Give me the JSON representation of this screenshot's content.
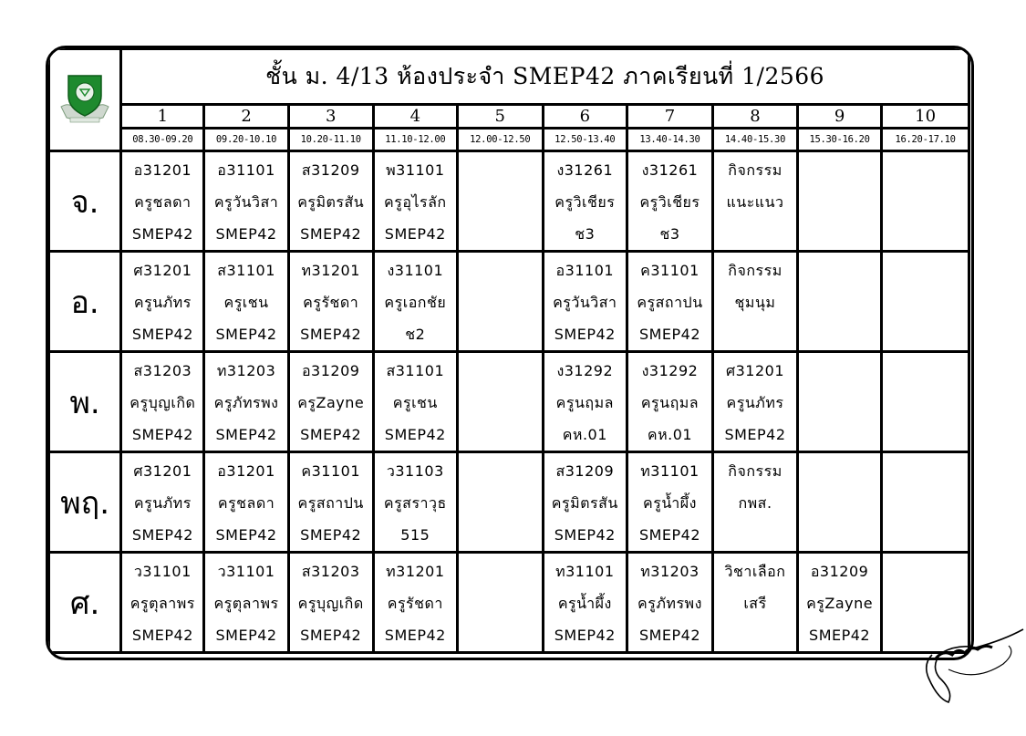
{
  "title": "ชั้น ม. 4/13 ห้องประจำ SMEP42 ภาคเรียนที่ 1/2566",
  "periods": [
    "1",
    "2",
    "3",
    "4",
    "5",
    "6",
    "7",
    "8",
    "9",
    "10"
  ],
  "times": [
    "08.30-09.20",
    "09.20-10.10",
    "10.20-11.10",
    "11.10-12.00",
    "12.00-12.50",
    "12.50-13.40",
    "13.40-14.30",
    "14.40-15.30",
    "15.30-16.20",
    "16.20-17.10"
  ],
  "logo": {
    "icon": "school-crest-icon",
    "color": "#1e8a2e"
  },
  "signature": {
    "icon": "handwritten-signature"
  },
  "schedule": [
    {
      "day": "จ.",
      "cells": [
        [
          "อ31201",
          "ครูชลดา",
          "SMEP42"
        ],
        [
          "อ31101",
          "ครูวันวิสา",
          "SMEP42"
        ],
        [
          "ส31209",
          "ครูมิตรสัน",
          "SMEP42"
        ],
        [
          "พ31101",
          "ครูอุไรลัก",
          "SMEP42"
        ],
        [],
        [
          "ง31261",
          "ครูวิเชียร",
          "ช3"
        ],
        [
          "ง31261",
          "ครูวิเชียร",
          "ช3"
        ],
        [
          "กิจกรรม",
          "แนะแนว"
        ],
        [],
        []
      ]
    },
    {
      "day": "อ.",
      "cells": [
        [
          "ศ31201",
          "ครูนภัทร",
          "SMEP42"
        ],
        [
          "ส31101",
          "ครูเชน",
          "SMEP42"
        ],
        [
          "ท31201",
          "ครูรัชดา",
          "SMEP42"
        ],
        [
          "ง31101",
          "ครูเอกชัย",
          "ช2"
        ],
        [],
        [
          "อ31101",
          "ครูวันวิสา",
          "SMEP42"
        ],
        [
          "ค31101",
          "ครูสถาปน",
          "SMEP42"
        ],
        [
          "กิจกรรม",
          "ชุมนุม"
        ],
        [],
        []
      ]
    },
    {
      "day": "พ.",
      "cells": [
        [
          "ส31203",
          "ครูบุญเกิด",
          "SMEP42"
        ],
        [
          "ท31203",
          "ครูภัทรพง",
          "SMEP42"
        ],
        [
          "อ31209",
          "ครูZayne",
          "SMEP42"
        ],
        [
          "ส31101",
          "ครูเชน",
          "SMEP42"
        ],
        [],
        [
          "ง31292",
          "ครูนฤมล",
          "คห.01"
        ],
        [
          "ง31292",
          "ครูนฤมล",
          "คห.01"
        ],
        [
          "ศ31201",
          "ครูนภัทร",
          "SMEP42"
        ],
        [],
        []
      ]
    },
    {
      "day": "พฤ.",
      "cells": [
        [
          "ศ31201",
          "ครูนภัทร",
          "SMEP42"
        ],
        [
          "อ31201",
          "ครูชลดา",
          "SMEP42"
        ],
        [
          "ค31101",
          "ครูสถาปน",
          "SMEP42"
        ],
        [
          "ว31103",
          "ครูสราวุธ",
          "515"
        ],
        [],
        [
          "ส31209",
          "ครูมิตรสัน",
          "SMEP42"
        ],
        [
          "ท31101",
          "ครูน้ำผึ้ง",
          "SMEP42"
        ],
        [
          "กิจกรรม",
          "กพส."
        ],
        [],
        []
      ]
    },
    {
      "day": "ศ.",
      "cells": [
        [
          "ว31101",
          "ครูตุลาพร",
          "SMEP42"
        ],
        [
          "ว31101",
          "ครูตุลาพร",
          "SMEP42"
        ],
        [
          "ส31203",
          "ครูบุญเกิด",
          "SMEP42"
        ],
        [
          "ท31201",
          "ครูรัชดา",
          "SMEP42"
        ],
        [],
        [
          "ท31101",
          "ครูน้ำผึ้ง",
          "SMEP42"
        ],
        [
          "ท31203",
          "ครูภัทรพง",
          "SMEP42"
        ],
        [
          "วิชาเลือก",
          "เสรี"
        ],
        [
          "อ31209",
          "ครูZayne",
          "SMEP42"
        ],
        []
      ]
    }
  ]
}
